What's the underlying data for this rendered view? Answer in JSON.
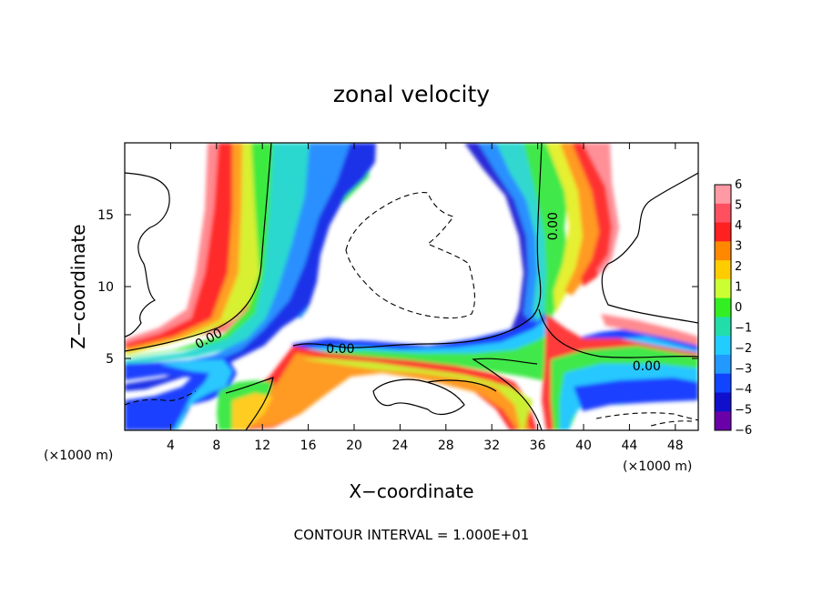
{
  "chart_data": {
    "type": "heatmap",
    "title": "zonal velocity",
    "xlabel": "X−coordinate",
    "ylabel": "Z−coordinate",
    "x_unit": "(×1000 m)",
    "z_unit": "(×1000 m)",
    "xlim": [
      0,
      50
    ],
    "ylim": [
      0,
      20
    ],
    "x_ticks": [
      4,
      8,
      12,
      16,
      20,
      24,
      28,
      32,
      36,
      40,
      44,
      48
    ],
    "x_tick_labels": [
      "4",
      "8",
      "12",
      "16",
      "20",
      "24",
      "28",
      "32",
      "36",
      "40",
      "44",
      "48"
    ],
    "y_ticks": [
      5,
      10,
      15
    ],
    "y_tick_labels": [
      "5",
      "10",
      "15"
    ],
    "colorbar": {
      "min": -6,
      "max": 6,
      "levels": [
        6,
        5,
        4,
        3,
        2,
        1,
        0,
        -1,
        -2,
        -3,
        -4,
        -5,
        -6
      ],
      "labels": [
        "6",
        "5",
        "4",
        "3",
        "2",
        "1",
        "0",
        "−1",
        "−2",
        "−3",
        "−4",
        "−5",
        "−6"
      ],
      "colors": [
        "#ff9aa4",
        "#ff5060",
        "#ff2020",
        "#ff8800",
        "#ffcc00",
        "#ccff33",
        "#33ee22",
        "#22ddaa",
        "#22ccff",
        "#2299ff",
        "#1144ff",
        "#1010cc",
        "#6a00a8"
      ]
    },
    "contour_labels": [
      {
        "text": "0.00",
        "x": 7.3,
        "z": 6.4,
        "angle": -28
      },
      {
        "text": "0.00",
        "x": 18.8,
        "z": 5.7,
        "angle": 0
      },
      {
        "text": "0.00",
        "x": 37.3,
        "z": 14.2,
        "angle": -90
      },
      {
        "text": "0.00",
        "x": 45.5,
        "z": 4.5,
        "angle": 0
      }
    ],
    "contour_interval_text": "CONTOUR INTERVAL = 1.000E+01"
  }
}
